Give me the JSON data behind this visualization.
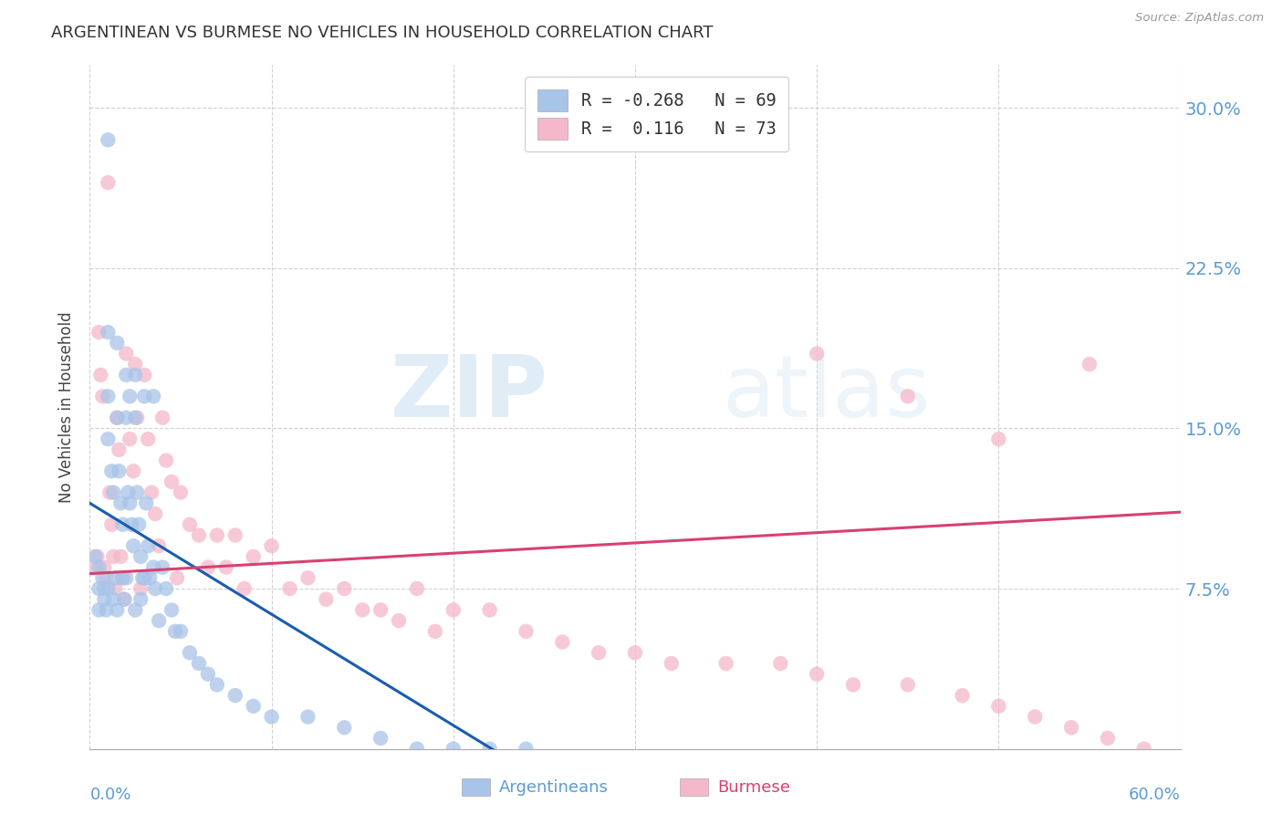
{
  "title": "ARGENTINEAN VS BURMESE NO VEHICLES IN HOUSEHOLD CORRELATION CHART",
  "source": "Source: ZipAtlas.com",
  "ylabel": "No Vehicles in Household",
  "ytick_values": [
    0.075,
    0.15,
    0.225,
    0.3
  ],
  "xlim": [
    0.0,
    0.6
  ],
  "ylim": [
    0.0,
    0.32
  ],
  "legend_R_arg": "-0.268",
  "legend_N_arg": "69",
  "legend_R_bur": "0.116",
  "legend_N_bur": "73",
  "color_arg": "#a8c4e8",
  "color_bur": "#f5b8ca",
  "color_arg_line": "#1a5cb0",
  "color_bur_line": "#d94070",
  "color_axis_labels": "#5b9bd5",
  "watermark_zip": "ZIP",
  "watermark_atlas": "atlas",
  "arg_intercept": 0.115,
  "arg_slope": -0.52,
  "bur_intercept": 0.082,
  "bur_slope": 0.048,
  "argentinean_x": [
    0.003,
    0.005,
    0.005,
    0.005,
    0.007,
    0.008,
    0.008,
    0.009,
    0.01,
    0.01,
    0.01,
    0.01,
    0.01,
    0.012,
    0.013,
    0.013,
    0.014,
    0.015,
    0.015,
    0.015,
    0.016,
    0.017,
    0.018,
    0.018,
    0.019,
    0.02,
    0.02,
    0.02,
    0.021,
    0.022,
    0.022,
    0.023,
    0.024,
    0.025,
    0.025,
    0.025,
    0.026,
    0.027,
    0.028,
    0.028,
    0.029,
    0.03,
    0.03,
    0.031,
    0.032,
    0.033,
    0.035,
    0.035,
    0.036,
    0.038,
    0.04,
    0.042,
    0.045,
    0.047,
    0.05,
    0.055,
    0.06,
    0.065,
    0.07,
    0.08,
    0.09,
    0.1,
    0.12,
    0.14,
    0.16,
    0.18,
    0.2,
    0.22,
    0.24
  ],
  "argentinean_y": [
    0.09,
    0.085,
    0.075,
    0.065,
    0.08,
    0.075,
    0.07,
    0.065,
    0.285,
    0.195,
    0.165,
    0.145,
    0.075,
    0.13,
    0.12,
    0.07,
    0.08,
    0.19,
    0.155,
    0.065,
    0.13,
    0.115,
    0.105,
    0.08,
    0.07,
    0.175,
    0.155,
    0.08,
    0.12,
    0.165,
    0.115,
    0.105,
    0.095,
    0.175,
    0.155,
    0.065,
    0.12,
    0.105,
    0.09,
    0.07,
    0.08,
    0.165,
    0.08,
    0.115,
    0.095,
    0.08,
    0.165,
    0.085,
    0.075,
    0.06,
    0.085,
    0.075,
    0.065,
    0.055,
    0.055,
    0.045,
    0.04,
    0.035,
    0.03,
    0.025,
    0.02,
    0.015,
    0.015,
    0.01,
    0.005,
    0.0,
    0.0,
    0.0,
    0.0
  ],
  "burmese_x": [
    0.003,
    0.004,
    0.005,
    0.006,
    0.007,
    0.008,
    0.009,
    0.01,
    0.011,
    0.012,
    0.013,
    0.014,
    0.015,
    0.016,
    0.017,
    0.018,
    0.019,
    0.02,
    0.022,
    0.024,
    0.025,
    0.026,
    0.028,
    0.03,
    0.032,
    0.034,
    0.036,
    0.038,
    0.04,
    0.042,
    0.045,
    0.048,
    0.05,
    0.055,
    0.06,
    0.065,
    0.07,
    0.075,
    0.08,
    0.085,
    0.09,
    0.1,
    0.11,
    0.12,
    0.13,
    0.14,
    0.15,
    0.16,
    0.17,
    0.18,
    0.19,
    0.2,
    0.22,
    0.24,
    0.26,
    0.28,
    0.3,
    0.32,
    0.35,
    0.38,
    0.4,
    0.42,
    0.45,
    0.48,
    0.5,
    0.52,
    0.54,
    0.56,
    0.58,
    0.4,
    0.45,
    0.5,
    0.55
  ],
  "burmese_y": [
    0.085,
    0.09,
    0.195,
    0.175,
    0.165,
    0.085,
    0.08,
    0.265,
    0.12,
    0.105,
    0.09,
    0.075,
    0.155,
    0.14,
    0.09,
    0.08,
    0.07,
    0.185,
    0.145,
    0.13,
    0.18,
    0.155,
    0.075,
    0.175,
    0.145,
    0.12,
    0.11,
    0.095,
    0.155,
    0.135,
    0.125,
    0.08,
    0.12,
    0.105,
    0.1,
    0.085,
    0.1,
    0.085,
    0.1,
    0.075,
    0.09,
    0.095,
    0.075,
    0.08,
    0.07,
    0.075,
    0.065,
    0.065,
    0.06,
    0.075,
    0.055,
    0.065,
    0.065,
    0.055,
    0.05,
    0.045,
    0.045,
    0.04,
    0.04,
    0.04,
    0.035,
    0.03,
    0.03,
    0.025,
    0.02,
    0.015,
    0.01,
    0.005,
    0.0,
    0.185,
    0.165,
    0.145,
    0.18
  ]
}
